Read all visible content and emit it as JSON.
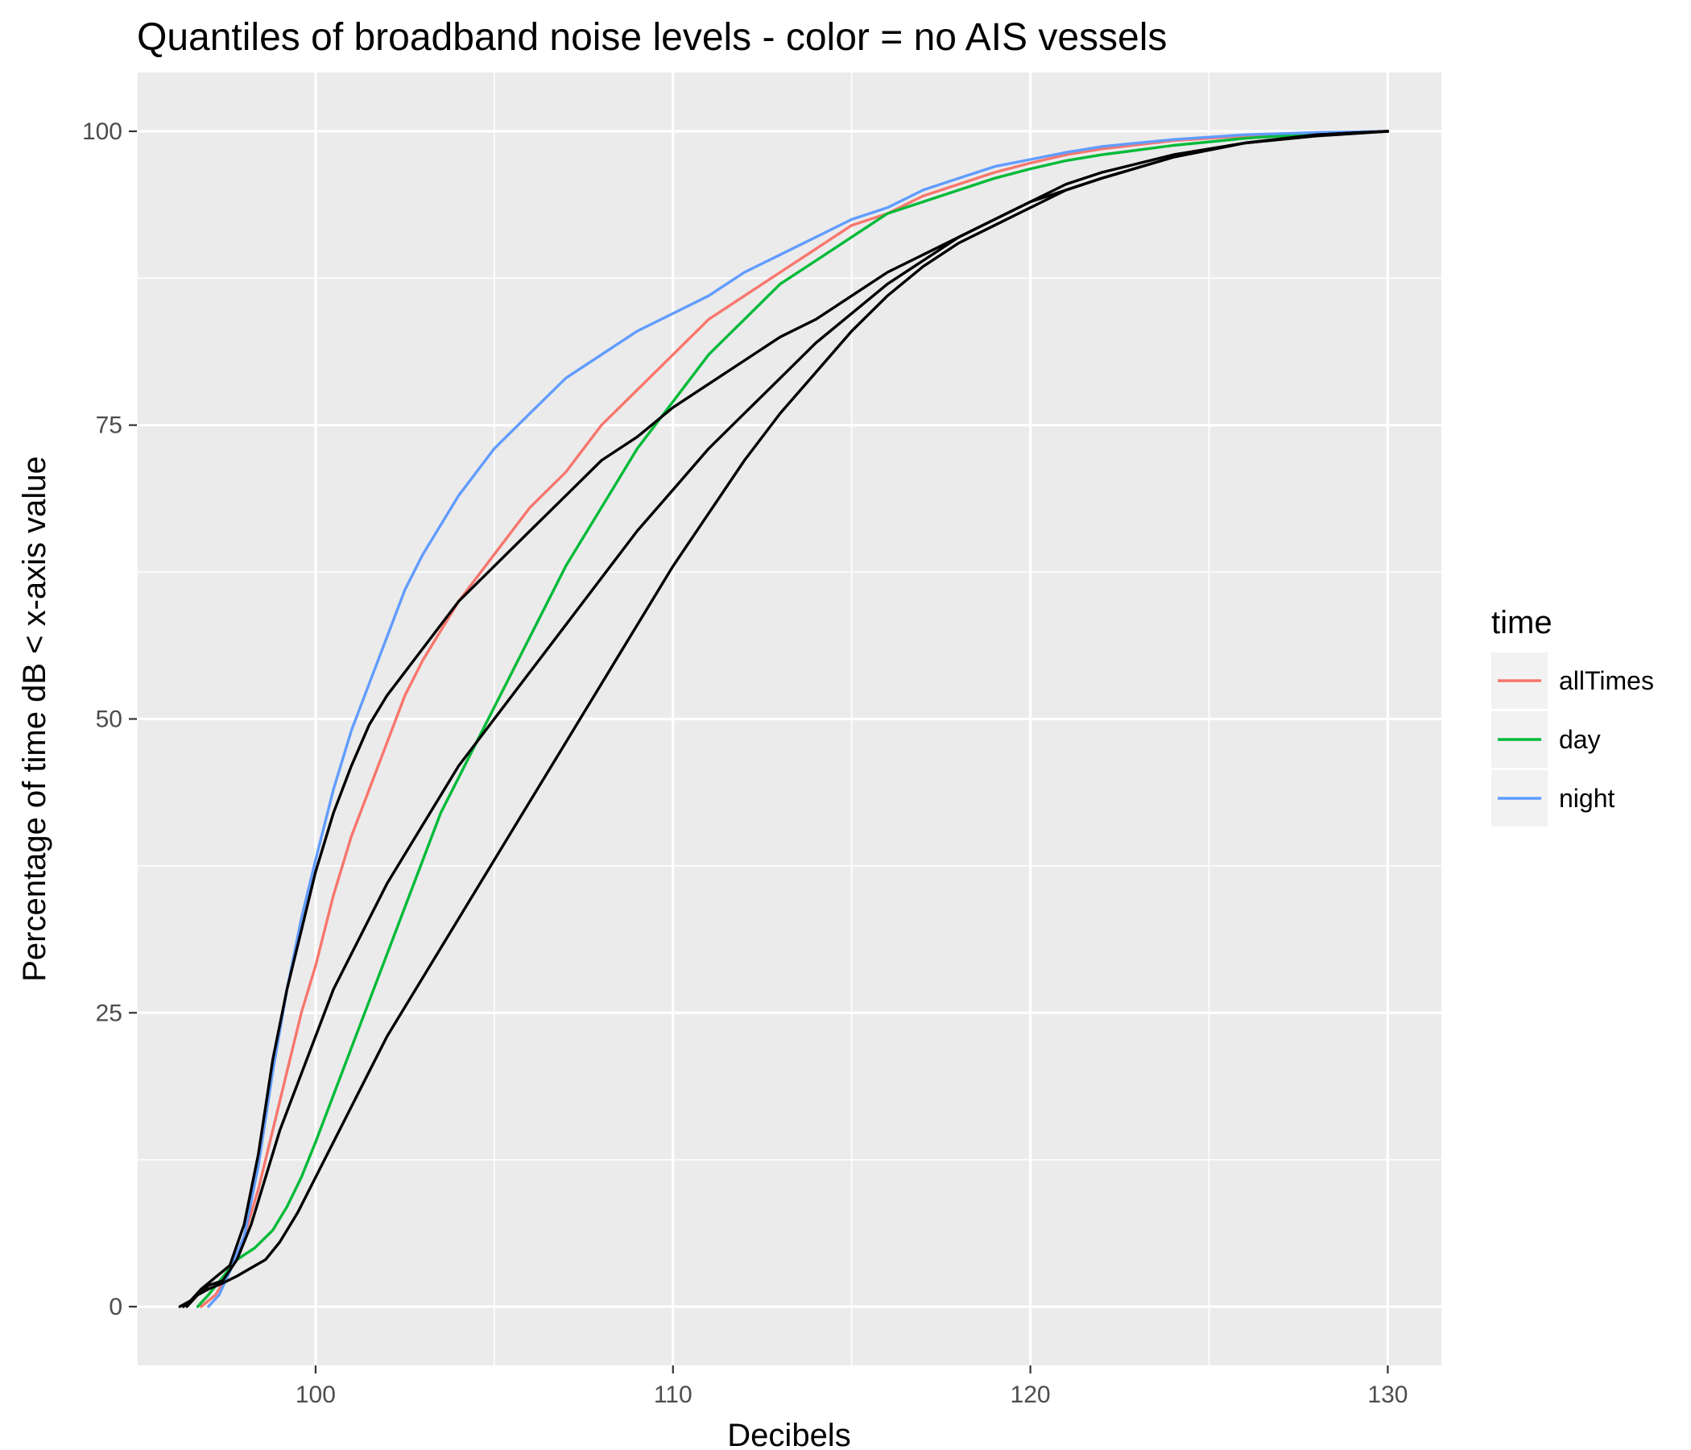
{
  "chart_data": {
    "type": "line",
    "title": "Quantiles of broadband noise levels - color = no AIS vessels",
    "xlabel": "Decibels",
    "ylabel": "Percentage of time dB < x-axis value",
    "xlim": [
      95,
      131.5
    ],
    "ylim": [
      -5,
      105
    ],
    "xticks": [
      100,
      110,
      120,
      130
    ],
    "yticks": [
      0,
      25,
      50,
      75,
      100
    ],
    "grid": true,
    "legend": {
      "title": "time",
      "position": "right"
    },
    "series": [
      {
        "name": "allTimes",
        "color": "#F8766D",
        "in_legend": true,
        "points": [
          [
            96.8,
            0
          ],
          [
            97.2,
            1
          ],
          [
            97.6,
            3
          ],
          [
            98.0,
            6
          ],
          [
            98.4,
            10
          ],
          [
            98.8,
            15
          ],
          [
            99.2,
            20
          ],
          [
            99.6,
            25
          ],
          [
            100.0,
            29
          ],
          [
            100.5,
            35
          ],
          [
            101.0,
            40
          ],
          [
            101.5,
            44
          ],
          [
            102.0,
            48
          ],
          [
            102.5,
            52
          ],
          [
            103.0,
            55
          ],
          [
            104.0,
            60
          ],
          [
            105.0,
            64
          ],
          [
            106.0,
            68
          ],
          [
            107.0,
            71
          ],
          [
            108.0,
            75
          ],
          [
            109.0,
            78
          ],
          [
            110.0,
            81
          ],
          [
            111.0,
            84
          ],
          [
            112.0,
            86
          ],
          [
            113.0,
            88
          ],
          [
            114.0,
            90
          ],
          [
            115.0,
            92
          ],
          [
            116.0,
            93
          ],
          [
            117.0,
            94.5
          ],
          [
            118.0,
            95.5
          ],
          [
            119.0,
            96.5
          ],
          [
            120.0,
            97.3
          ],
          [
            121.0,
            98
          ],
          [
            122.0,
            98.5
          ],
          [
            124.0,
            99.2
          ],
          [
            126.0,
            99.6
          ],
          [
            128.0,
            99.8
          ],
          [
            130.0,
            100
          ]
        ]
      },
      {
        "name": "day",
        "color": "#00BA38",
        "in_legend": true,
        "points": [
          [
            96.7,
            0
          ],
          [
            97.0,
            1
          ],
          [
            97.4,
            2.5
          ],
          [
            97.8,
            4
          ],
          [
            98.3,
            5
          ],
          [
            98.8,
            6.5
          ],
          [
            99.2,
            8.5
          ],
          [
            99.6,
            11
          ],
          [
            100.0,
            14
          ],
          [
            100.5,
            18
          ],
          [
            101.0,
            22
          ],
          [
            101.5,
            26
          ],
          [
            102.0,
            30
          ],
          [
            102.5,
            34
          ],
          [
            103.0,
            38
          ],
          [
            103.5,
            42
          ],
          [
            104.0,
            45
          ],
          [
            104.5,
            48
          ],
          [
            105.0,
            51
          ],
          [
            105.5,
            54
          ],
          [
            106.0,
            57
          ],
          [
            107.0,
            63
          ],
          [
            108.0,
            68
          ],
          [
            109.0,
            73
          ],
          [
            110.0,
            77
          ],
          [
            111.0,
            81
          ],
          [
            112.0,
            84
          ],
          [
            113.0,
            87
          ],
          [
            114.0,
            89
          ],
          [
            115.0,
            91
          ],
          [
            116.0,
            93
          ],
          [
            117.0,
            94
          ],
          [
            118.0,
            95
          ],
          [
            119.0,
            96
          ],
          [
            120.0,
            96.8
          ],
          [
            121.0,
            97.5
          ],
          [
            122.0,
            98
          ],
          [
            124.0,
            98.8
          ],
          [
            126.0,
            99.4
          ],
          [
            128.0,
            99.8
          ],
          [
            130.0,
            100
          ]
        ]
      },
      {
        "name": "night",
        "color": "#619CFF",
        "in_legend": true,
        "points": [
          [
            97.0,
            0
          ],
          [
            97.3,
            1
          ],
          [
            97.6,
            3
          ],
          [
            98.0,
            6
          ],
          [
            98.4,
            12
          ],
          [
            98.8,
            20
          ],
          [
            99.2,
            27
          ],
          [
            99.6,
            33
          ],
          [
            100.0,
            38
          ],
          [
            100.5,
            44
          ],
          [
            101.0,
            49
          ],
          [
            101.5,
            53
          ],
          [
            102.0,
            57
          ],
          [
            102.5,
            61
          ],
          [
            103.0,
            64
          ],
          [
            104.0,
            69
          ],
          [
            105.0,
            73
          ],
          [
            106.0,
            76
          ],
          [
            107.0,
            79
          ],
          [
            108.0,
            81
          ],
          [
            109.0,
            83
          ],
          [
            110.0,
            84.5
          ],
          [
            111.0,
            86
          ],
          [
            112.0,
            88
          ],
          [
            113.0,
            89.5
          ],
          [
            114.0,
            91
          ],
          [
            115.0,
            92.5
          ],
          [
            116.0,
            93.5
          ],
          [
            117.0,
            95
          ],
          [
            118.0,
            96
          ],
          [
            119.0,
            97
          ],
          [
            120.0,
            97.6
          ],
          [
            121.0,
            98.2
          ],
          [
            122.0,
            98.7
          ],
          [
            124.0,
            99.3
          ],
          [
            126.0,
            99.7
          ],
          [
            128.0,
            99.9
          ],
          [
            130.0,
            100
          ]
        ]
      },
      {
        "name": "",
        "color": "#000000",
        "in_legend": false,
        "points": [
          [
            96.2,
            0
          ],
          [
            96.5,
            0.5
          ],
          [
            96.8,
            1.5
          ],
          [
            97.2,
            2.5
          ],
          [
            97.6,
            3.5
          ],
          [
            98.0,
            7
          ],
          [
            98.4,
            13
          ],
          [
            98.8,
            21
          ],
          [
            99.2,
            27
          ],
          [
            99.6,
            32
          ],
          [
            100.0,
            37
          ],
          [
            100.5,
            42
          ],
          [
            101.0,
            46
          ],
          [
            101.5,
            49.5
          ],
          [
            102.0,
            52
          ],
          [
            103.0,
            56
          ],
          [
            104.0,
            60
          ],
          [
            105.0,
            63
          ],
          [
            106.0,
            66
          ],
          [
            107.0,
            69
          ],
          [
            108.0,
            72
          ],
          [
            109.0,
            74
          ],
          [
            110.0,
            76.5
          ],
          [
            111.0,
            78.5
          ],
          [
            112.0,
            80.5
          ],
          [
            113.0,
            82.5
          ],
          [
            114.0,
            84
          ],
          [
            115.0,
            86
          ],
          [
            116.0,
            88
          ],
          [
            117.0,
            89.5
          ],
          [
            118.0,
            91
          ],
          [
            119.0,
            92.5
          ],
          [
            120.0,
            94
          ],
          [
            121.0,
            95
          ],
          [
            122.0,
            96
          ],
          [
            124.0,
            97.8
          ],
          [
            126.0,
            99
          ],
          [
            128.0,
            99.7
          ],
          [
            130.0,
            100
          ]
        ]
      },
      {
        "name": "",
        "color": "#000000",
        "in_legend": false,
        "points": [
          [
            96.3,
            0
          ],
          [
            96.7,
            1
          ],
          [
            97.0,
            1.8
          ],
          [
            97.4,
            2.2
          ],
          [
            97.8,
            4
          ],
          [
            98.2,
            7
          ],
          [
            98.6,
            11
          ],
          [
            99.0,
            15
          ],
          [
            99.5,
            19
          ],
          [
            100.0,
            23
          ],
          [
            100.5,
            27
          ],
          [
            101.0,
            30
          ],
          [
            101.5,
            33
          ],
          [
            102.0,
            36
          ],
          [
            103.0,
            41
          ],
          [
            104.0,
            46
          ],
          [
            105.0,
            50
          ],
          [
            106.0,
            54
          ],
          [
            107.0,
            58
          ],
          [
            108.0,
            62
          ],
          [
            109.0,
            66
          ],
          [
            110.0,
            69.5
          ],
          [
            111.0,
            73
          ],
          [
            112.0,
            76
          ],
          [
            113.0,
            79
          ],
          [
            114.0,
            82
          ],
          [
            115.0,
            84.5
          ],
          [
            116.0,
            87
          ],
          [
            117.0,
            89
          ],
          [
            118.0,
            91
          ],
          [
            119.0,
            92.5
          ],
          [
            120.0,
            94
          ],
          [
            121.0,
            95.5
          ],
          [
            122.0,
            96.5
          ],
          [
            124.0,
            98
          ],
          [
            126.0,
            99
          ],
          [
            128.0,
            99.7
          ],
          [
            130.0,
            100
          ]
        ]
      },
      {
        "name": "",
        "color": "#000000",
        "in_legend": false,
        "points": [
          [
            96.4,
            0
          ],
          [
            96.7,
            1
          ],
          [
            97.0,
            1.5
          ],
          [
            97.4,
            2
          ],
          [
            97.8,
            2.6
          ],
          [
            98.2,
            3.3
          ],
          [
            98.6,
            4
          ],
          [
            99.0,
            5.5
          ],
          [
            99.5,
            8
          ],
          [
            100.0,
            11
          ],
          [
            100.5,
            14
          ],
          [
            101.0,
            17
          ],
          [
            101.5,
            20
          ],
          [
            102.0,
            23
          ],
          [
            103.0,
            28
          ],
          [
            104.0,
            33
          ],
          [
            105.0,
            38
          ],
          [
            106.0,
            43
          ],
          [
            107.0,
            48
          ],
          [
            108.0,
            53
          ],
          [
            109.0,
            58
          ],
          [
            110.0,
            63
          ],
          [
            111.0,
            67.5
          ],
          [
            112.0,
            72
          ],
          [
            113.0,
            76
          ],
          [
            114.0,
            79.5
          ],
          [
            115.0,
            83
          ],
          [
            116.0,
            86
          ],
          [
            117.0,
            88.5
          ],
          [
            118.0,
            90.5
          ],
          [
            119.0,
            92
          ],
          [
            120.0,
            93.5
          ],
          [
            121.0,
            95
          ],
          [
            122.0,
            96
          ],
          [
            124.0,
            97.8
          ],
          [
            126.0,
            99
          ],
          [
            128.0,
            99.6
          ],
          [
            130.0,
            100
          ]
        ]
      }
    ]
  }
}
